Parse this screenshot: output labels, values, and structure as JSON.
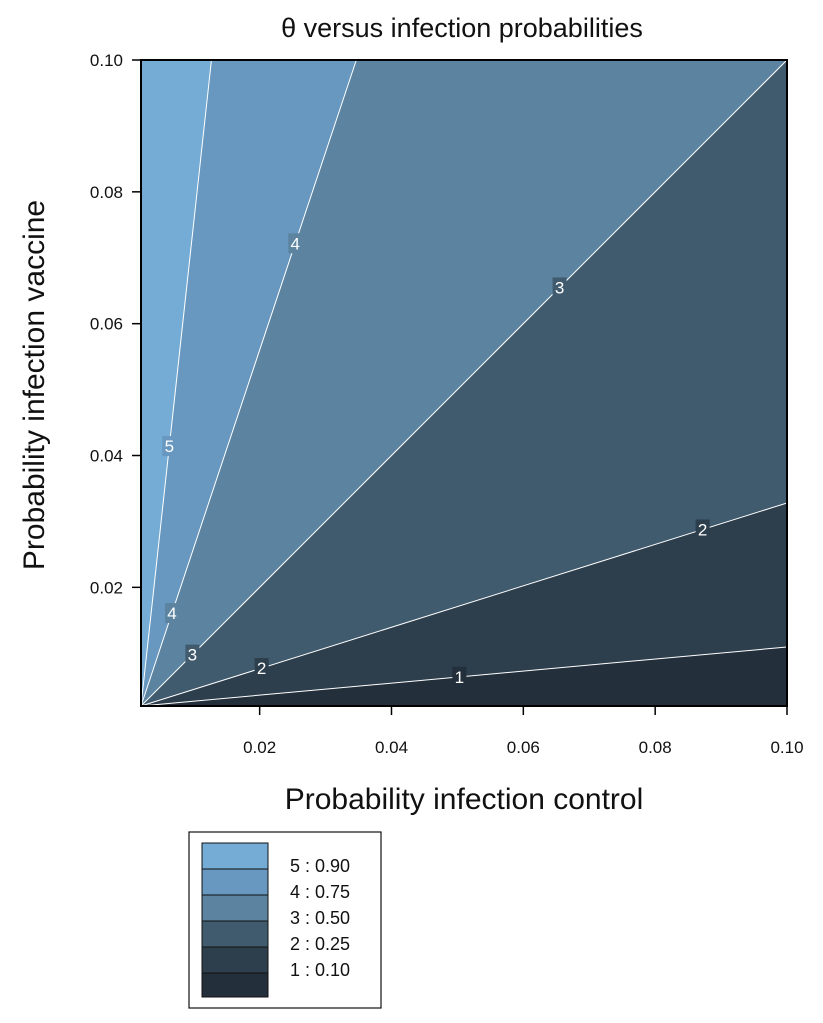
{
  "chart_data": {
    "type": "contour",
    "title": "θ versus infection probabilities",
    "xlabel": "Probability infection control",
    "ylabel": "Probability infection vaccine",
    "xlim": [
      0.002,
      0.1
    ],
    "ylim": [
      0.002,
      0.1
    ],
    "x_ticks": [
      0.02,
      0.04,
      0.06,
      0.08,
      0.1
    ],
    "x_tick_labels": [
      "0.02",
      "0.04",
      "0.06",
      "0.08",
      "0.10"
    ],
    "y_ticks": [
      0.02,
      0.04,
      0.06,
      0.08,
      0.1
    ],
    "y_tick_labels": [
      "0.02",
      "0.04",
      "0.06",
      "0.08",
      "0.10"
    ],
    "contours": [
      {
        "level": "1",
        "theta": 0.1,
        "slope": 0.0913,
        "color": "#23303b",
        "labels": [
          {
            "text": "1",
            "x": 0.0503
          }
        ]
      },
      {
        "level": "2",
        "theta": 0.25,
        "slope": 0.3143,
        "color": "#2d3e4c",
        "labels": [
          {
            "text": "2",
            "x": 0.0203
          },
          {
            "text": "2",
            "x": 0.0872
          }
        ]
      },
      {
        "level": "3",
        "theta": 0.5,
        "slope": 1.0,
        "color": "#405a6e",
        "labels": [
          {
            "text": "3",
            "x": 0.0098
          },
          {
            "text": "3",
            "x": 0.0655
          }
        ]
      },
      {
        "level": "4",
        "theta": 0.75,
        "slope": 3.0,
        "color": "#5c84a0",
        "labels": [
          {
            "text": "4",
            "x": 0.0067
          },
          {
            "text": "4",
            "x": 0.0254
          }
        ]
      },
      {
        "level": "5",
        "theta": 0.9,
        "slope": 9.17,
        "color": "#6898bf",
        "labels": [
          {
            "text": "5",
            "x": 0.0063
          }
        ]
      }
    ],
    "top_region_color": "#74acd6",
    "legend": {
      "position": "bottom-left",
      "entries": [
        {
          "text": "5 : 0.90",
          "color": "#74acd6"
        },
        {
          "text": "4 : 0.75",
          "color": "#6898bf"
        },
        {
          "text": "3 : 0.50",
          "color": "#5c84a0"
        },
        {
          "text": "2 : 0.25",
          "color": "#405a6e"
        },
        {
          "text": "1 : 0.10",
          "color": "#2d3e4c"
        }
      ],
      "bottom_color": "#23303b"
    }
  }
}
